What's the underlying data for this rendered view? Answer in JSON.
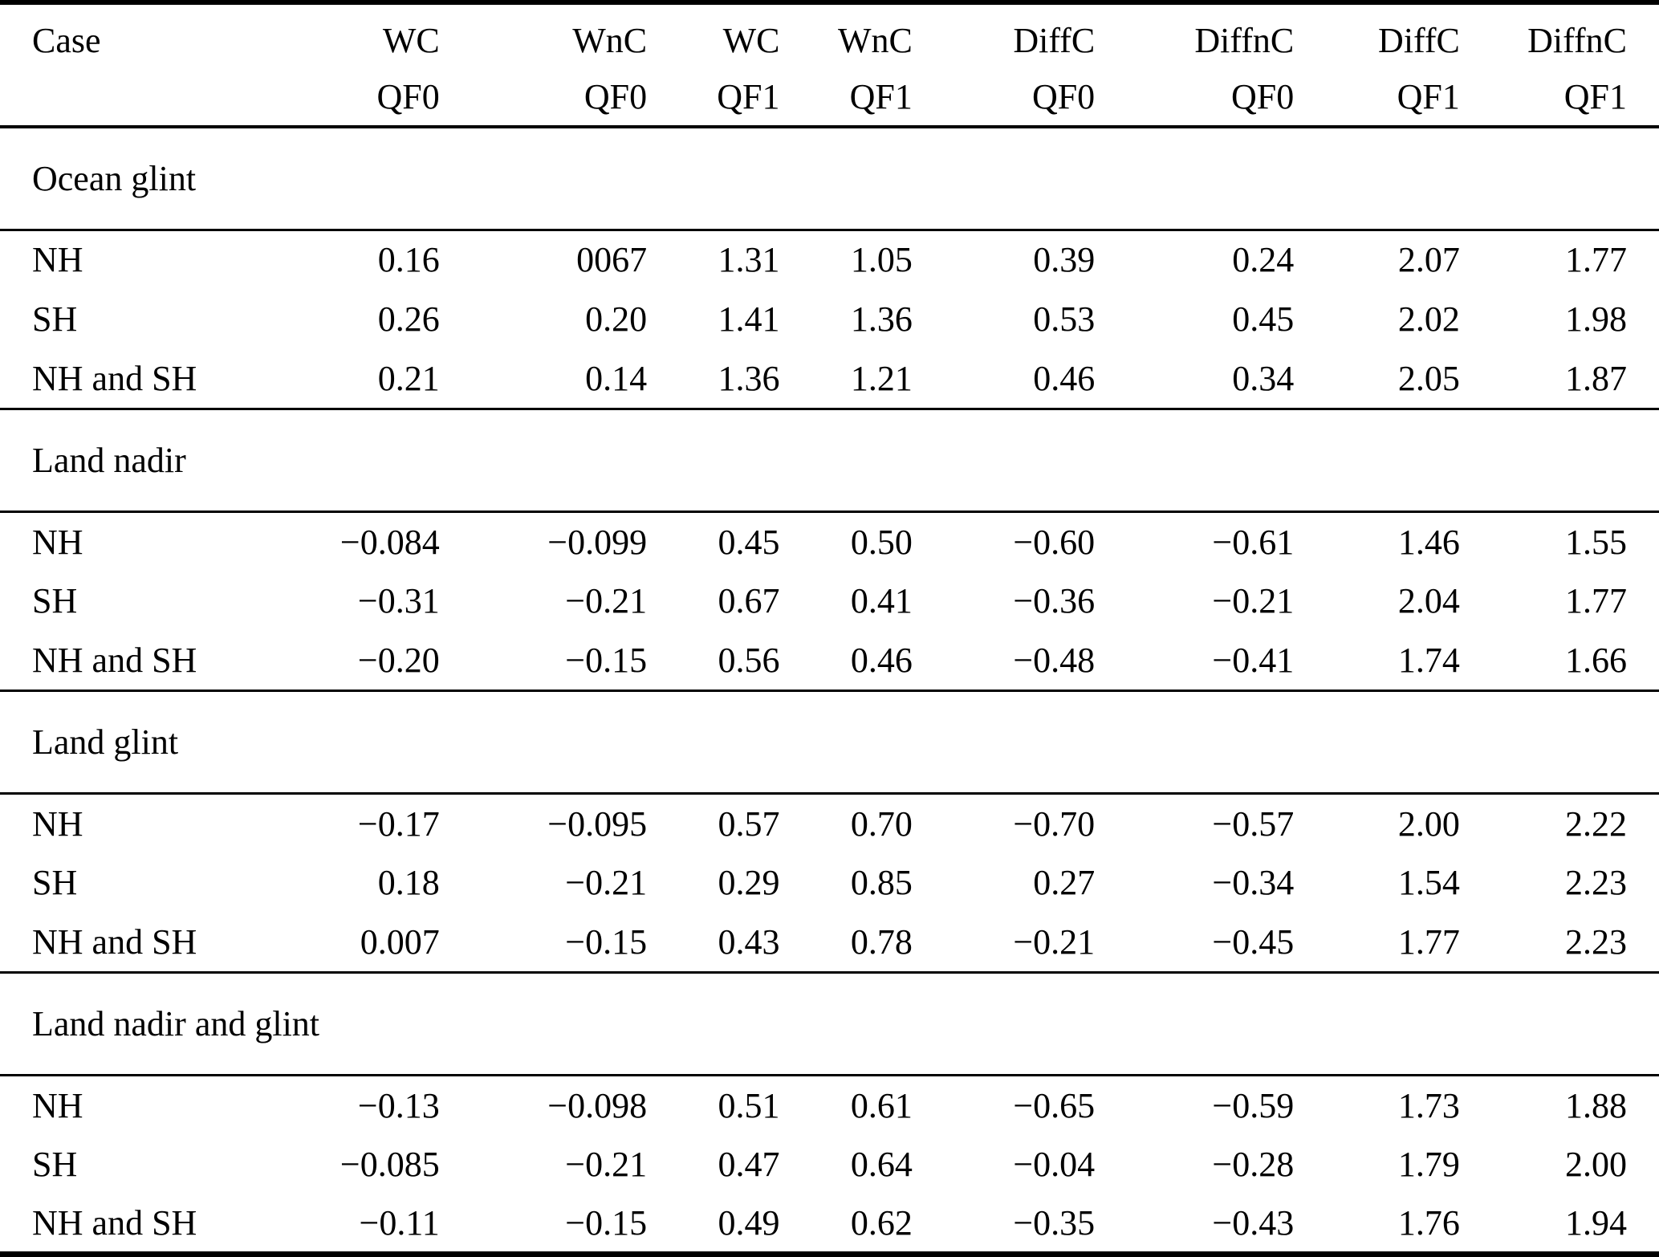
{
  "table": {
    "columns": [
      {
        "line1": "Case",
        "line2": ""
      },
      {
        "line1": "WC",
        "line2": "QF0"
      },
      {
        "line1": "WnC",
        "line2": "QF0"
      },
      {
        "line1": "WC",
        "line2": "QF1"
      },
      {
        "line1": "WnC",
        "line2": "QF1"
      },
      {
        "line1": "DiffC",
        "line2": "QF0"
      },
      {
        "line1": "DiffnC",
        "line2": "QF0"
      },
      {
        "line1": "DiffC",
        "line2": "QF1"
      },
      {
        "line1": "DiffnC",
        "line2": "QF1"
      }
    ],
    "sections": [
      {
        "title": "Ocean glint",
        "rows": [
          {
            "case": "NH",
            "values": [
              "0.16",
              "0067",
              "1.31",
              "1.05",
              "0.39",
              "0.24",
              "2.07",
              "1.77"
            ]
          },
          {
            "case": "SH",
            "values": [
              "0.26",
              "0.20",
              "1.41",
              "1.36",
              "0.53",
              "0.45",
              "2.02",
              "1.98"
            ]
          },
          {
            "case": "NH and SH",
            "values": [
              "0.21",
              "0.14",
              "1.36",
              "1.21",
              "0.46",
              "0.34",
              "2.05",
              "1.87"
            ]
          }
        ]
      },
      {
        "title": "Land nadir",
        "rows": [
          {
            "case": "NH",
            "values": [
              "−0.084",
              "−0.099",
              "0.45",
              "0.50",
              "−0.60",
              "−0.61",
              "1.46",
              "1.55"
            ]
          },
          {
            "case": "SH",
            "values": [
              "−0.31",
              "−0.21",
              "0.67",
              "0.41",
              "−0.36",
              "−0.21",
              "2.04",
              "1.77"
            ]
          },
          {
            "case": "NH and SH",
            "values": [
              "−0.20",
              "−0.15",
              "0.56",
              "0.46",
              "−0.48",
              "−0.41",
              "1.74",
              "1.66"
            ]
          }
        ]
      },
      {
        "title": "Land glint",
        "rows": [
          {
            "case": "NH",
            "values": [
              "−0.17",
              "−0.095",
              "0.57",
              "0.70",
              "−0.70",
              "−0.57",
              "2.00",
              "2.22"
            ]
          },
          {
            "case": "SH",
            "values": [
              "0.18",
              "−0.21",
              "0.29",
              "0.85",
              "0.27",
              "−0.34",
              "1.54",
              "2.23"
            ]
          },
          {
            "case": "NH and SH",
            "values": [
              "0.007",
              "−0.15",
              "0.43",
              "0.78",
              "−0.21",
              "−0.45",
              "1.77",
              "2.23"
            ]
          }
        ]
      },
      {
        "title": "Land nadir and glint",
        "rows": [
          {
            "case": "NH",
            "values": [
              "−0.13",
              "−0.098",
              "0.51",
              "0.61",
              "−0.65",
              "−0.59",
              "1.73",
              "1.88"
            ]
          },
          {
            "case": "SH",
            "values": [
              "−0.085",
              "−0.21",
              "0.47",
              "0.64",
              "−0.04",
              "−0.28",
              "1.79",
              "2.00"
            ]
          },
          {
            "case": "NH and SH",
            "values": [
              "−0.11",
              "−0.15",
              "0.49",
              "0.62",
              "−0.35",
              "−0.43",
              "1.76",
              "1.94"
            ]
          }
        ]
      }
    ]
  }
}
